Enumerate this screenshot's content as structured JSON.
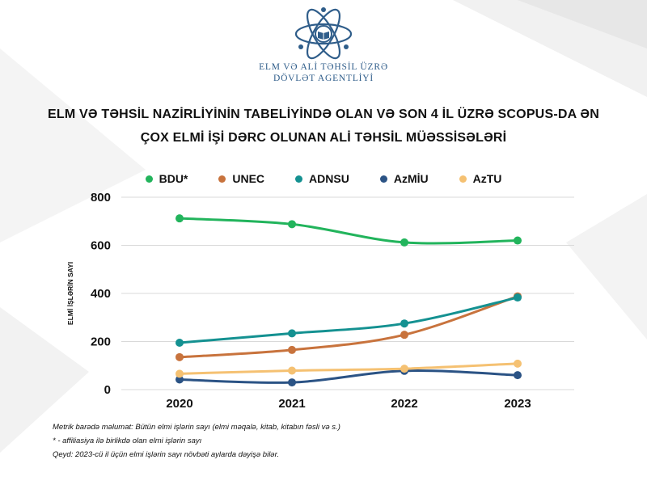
{
  "header": {
    "org_line1": "ELM VƏ ALİ TƏHSİL ÜZRƏ",
    "org_line2": "DÖVLƏT AGENTLİYİ"
  },
  "colors": {
    "logo": "#2f5d8a",
    "grid": "#d9d9d9",
    "axis_text": "#111111"
  },
  "chart_data": {
    "type": "line",
    "title_line1": "ELM VƏ TƏHSİL NAZİRLİYİNİN TABELİYİNDƏ OLAN VƏ SON 4 İL ÜZRƏ SCOPUS-DA ƏN",
    "title_line2": "ÇOX ELMİ İŞİ DƏRC OLUNAN ALİ TƏHSİL MÜƏSSİSƏLƏRİ",
    "ylabel": "ELMİ İŞLƏRİN SAYI",
    "xlabel": "",
    "x": [
      "2020",
      "2021",
      "2022",
      "2023"
    ],
    "ylim": [
      0,
      800
    ],
    "yticks": [
      0,
      200,
      400,
      600,
      800
    ],
    "grid": true,
    "legend_position": "top",
    "series": [
      {
        "name": "BDU*",
        "color": "#22b45c",
        "values": [
          712,
          688,
          612,
          620
        ]
      },
      {
        "name": "UNEC",
        "color": "#c8733d",
        "values": [
          135,
          165,
          228,
          388
        ]
      },
      {
        "name": "ADNSU",
        "color": "#149191",
        "values": [
          195,
          234,
          275,
          383
        ]
      },
      {
        "name": "AzMİU",
        "color": "#2b5385",
        "values": [
          42,
          30,
          78,
          60
        ]
      },
      {
        "name": "AzTU",
        "color": "#f5c172",
        "values": [
          66,
          79,
          87,
          108
        ]
      }
    ]
  },
  "notes": {
    "line1": "Metrik barədə məlumat: Bütün elmi işlərin sayı (elmi məqalə, kitab, kitabın fəsli və s.)",
    "line2": "* - affiliasiya ilə birlikdə olan elmi işlərin sayı",
    "line3": "Qeyd: 2023-cü il üçün elmi işlərin sayı növbəti aylarda dəyişə bilər."
  }
}
